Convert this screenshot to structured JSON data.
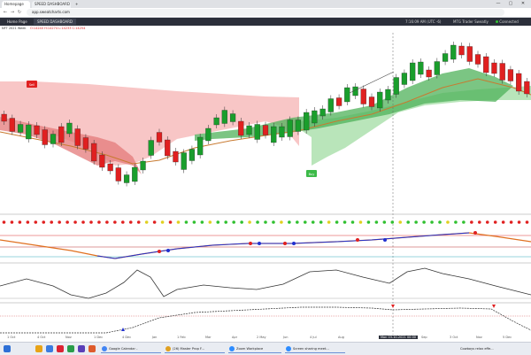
{
  "browser": {
    "tabs": [
      {
        "label": "Homepage"
      },
      {
        "label": "SPEED DASHBOARD"
      }
    ],
    "new_tab": "+",
    "window_controls": [
      "—",
      "▢",
      "✕"
    ],
    "address": "app.sweatcharts.com",
    "nav": {
      "back": "←",
      "forward": "→",
      "reload": "↻"
    }
  },
  "app": {
    "tabs": [
      {
        "label": "Home Page",
        "active": false
      },
      {
        "label": "SPEED DASHBOARD",
        "active": true
      }
    ],
    "time": "7:16:09 AM",
    "zone": "(UTC -6)",
    "user": "MTG Trader Sweatly",
    "status": "Connected"
  },
  "symbol": {
    "name": "NFT 2021 Week",
    "quote": "O:14240 H:14274 L:14233 C:14254"
  },
  "chart_data": {
    "type": "candlestick",
    "trend_colors": {
      "up": "#1a9e2c",
      "down": "#e02020",
      "cloud_up": "#5fc36a",
      "cloud_down": "#ee8f8f"
    },
    "signals": [
      {
        "type": "sell",
        "label": "Sell"
      },
      {
        "type": "buy",
        "label": "Buy"
      }
    ],
    "dots_row": {
      "colors": [
        "#e02020",
        "#e02020",
        "#e02020",
        "#e02020",
        "#e02020",
        "#e02020",
        "#e02020",
        "#e02020",
        "#e02020",
        "#e02020",
        "#e02020",
        "#e02020",
        "#e02020",
        "#e02020",
        "#e02020",
        "#e02020",
        "#e02020",
        "#e02020",
        "#e0d020",
        "#e02020",
        "#e0d020",
        "#e02020",
        "#e0d020",
        "#30c030",
        "#30c030",
        "#30c030",
        "#e0d020",
        "#30c030",
        "#30c030",
        "#30c030",
        "#30c030",
        "#e0d020",
        "#30c030",
        "#30c030",
        "#30c030",
        "#e0d020",
        "#30c030",
        "#30c030",
        "#30c030",
        "#30c030",
        "#30c030",
        "#e0d020",
        "#30c030",
        "#30c030",
        "#30c030",
        "#e0d020",
        "#30c030",
        "#30c030",
        "#30c030",
        "#30c030",
        "#e0d020",
        "#30c030",
        "#30c030",
        "#30c030",
        "#30c030",
        "#30c030",
        "#e0d020",
        "#30c030",
        "#30c030",
        "#e02020",
        "#e02020",
        "#e02020",
        "#e02020",
        "#e02020",
        "#e02020",
        "#e02020",
        "#e02020"
      ]
    },
    "x_labels": [
      "1 Oct",
      "4 Oct",
      "Nov",
      "1 Dec",
      "4 Dec",
      "Jan",
      "1 Feb",
      "Mar",
      "Apr",
      "2 May",
      "Jun",
      "4 Jul",
      "Aug",
      "Sep",
      "3 Oct",
      "Nov",
      "5 Dec"
    ],
    "cursor_date": "Mon 03-10-2021 00:00"
  },
  "taskbar": {
    "apps": [
      {
        "label": "Google Calendar -",
        "color": "#4285f4"
      },
      {
        "label": "(26) Master Prop F...",
        "color": "#e0a020"
      },
      {
        "label": "Zoom Workplace",
        "color": "#2d8cff"
      },
      {
        "label": "Screen sharing meet...",
        "color": "#2d8cff"
      }
    ],
    "tray": "Cowboys relax effe..."
  }
}
